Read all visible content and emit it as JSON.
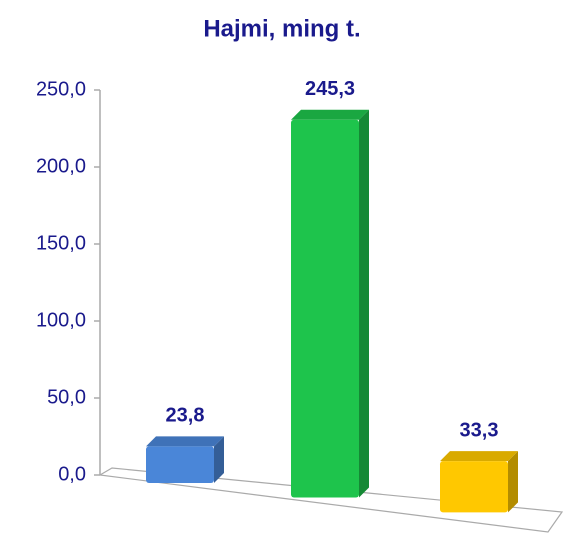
{
  "chart_data": {
    "type": "bar3d",
    "title": "Hajmi, ming t.",
    "categories": [
      null,
      null,
      null
    ],
    "values": [
      23.8,
      245.3,
      33.3
    ],
    "value_labels": [
      "23,8",
      "245,3",
      "33,3"
    ],
    "colors": [
      "#4a86d8",
      "#1ec44c",
      "#ffc800"
    ],
    "ylim": [
      0,
      250
    ],
    "yticks": [
      {
        "value": 0,
        "label": "0,0"
      },
      {
        "value": 50,
        "label": "50,0"
      },
      {
        "value": 100,
        "label": "100,0"
      },
      {
        "value": 150,
        "label": "150,0"
      },
      {
        "value": 200,
        "label": "200,0"
      },
      {
        "value": 250,
        "label": "250,0"
      }
    ],
    "grid": false
  }
}
